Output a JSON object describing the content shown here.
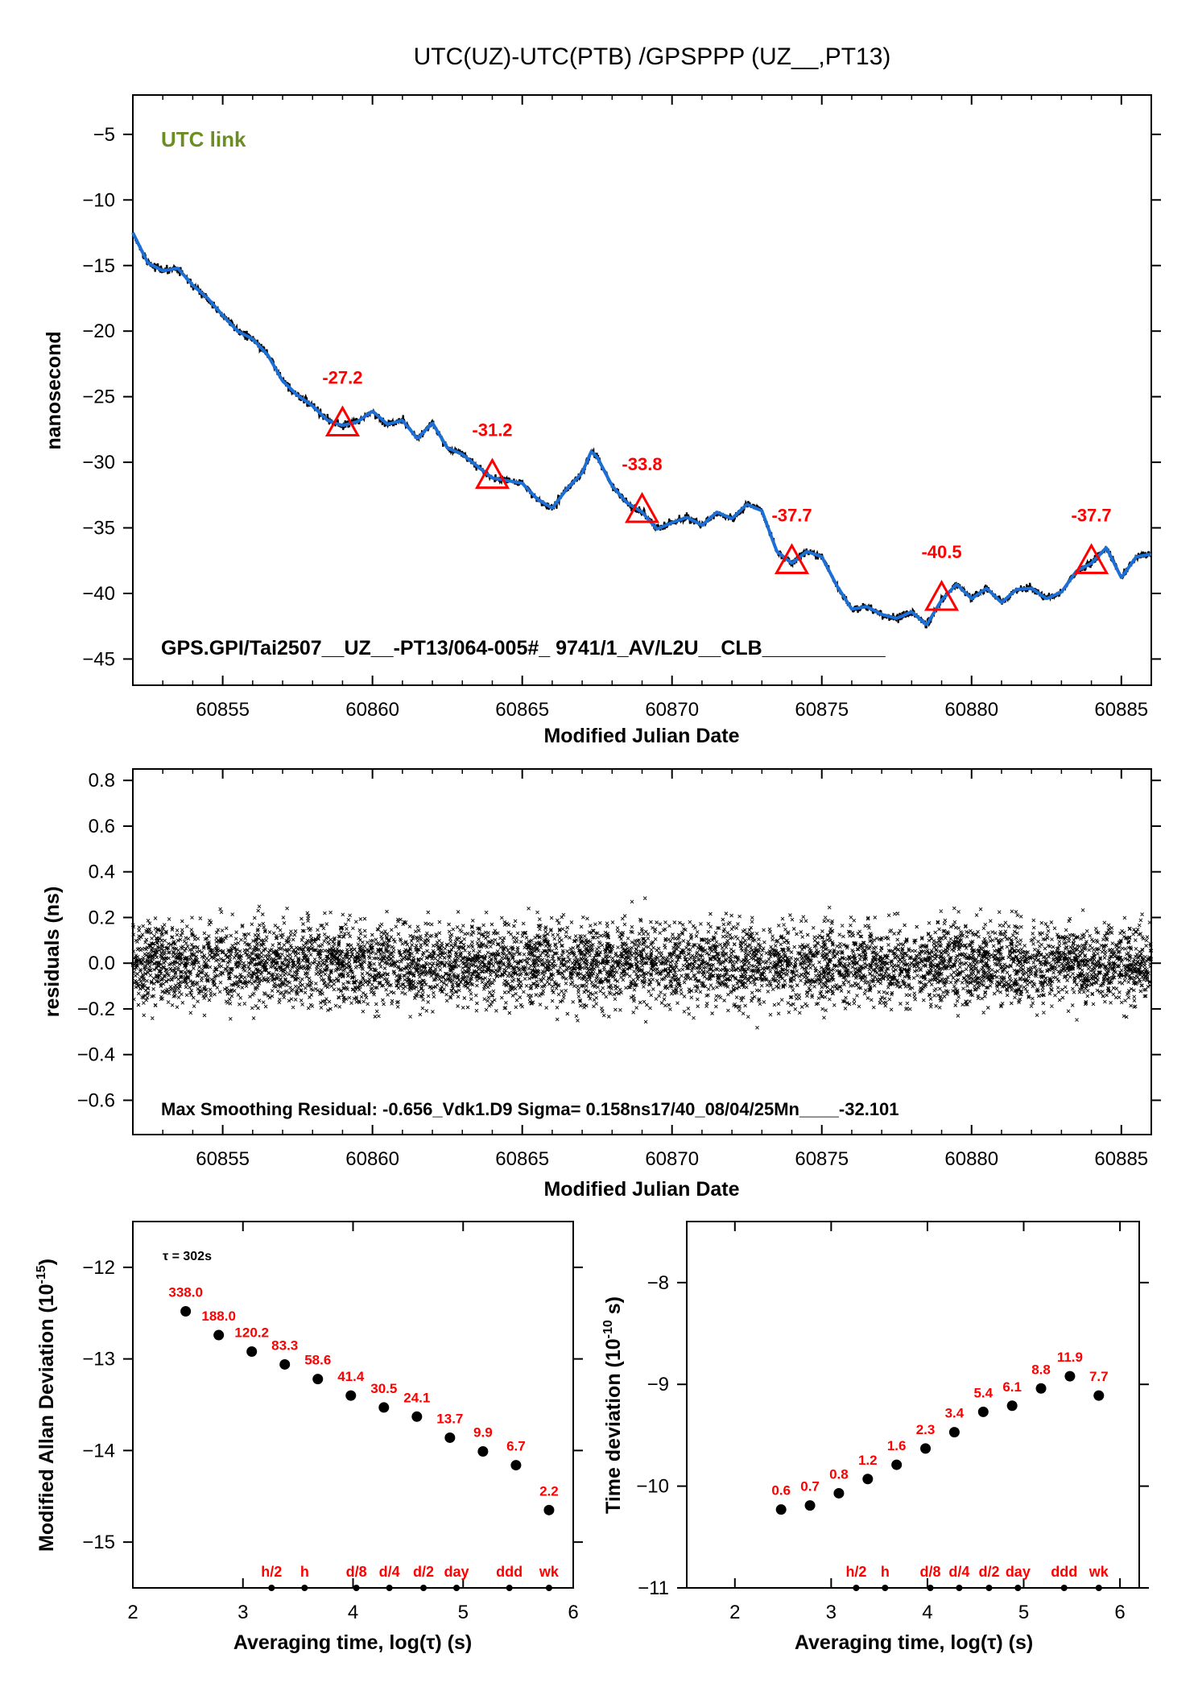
{
  "title": "UTC(UZ)-UTC(PTB)  /GPSPPP  (UZ__,PT13)",
  "panel1": {
    "tag": "UTC link",
    "ylabel": "nanosecond",
    "xlabel": "Modified Julian Date",
    "footer": "GPS.GPI/Tai2507__UZ__-PT13/064-005#_  9741/1_AV/L2U__CLB___________",
    "colors": {
      "trace": "#1b6fd6",
      "noise": "#000000",
      "markers": "#ff0000",
      "tag": "#6b8e23"
    }
  },
  "panel2": {
    "ylabel": "residuals (ns)",
    "xlabel": "Modified Julian Date",
    "footer": "Max Smoothing Residual: -0.656_Vdk1.D9  Sigma= 0.158ns17/40_08/04/25Mn____-32.101"
  },
  "panel3": {
    "ylabel_main": "Modified Allan Deviation (10",
    "ylabel_exp": "-15",
    "ylabel_close": ")",
    "xlabel": "Averaging time, log(τ) (s)",
    "tau_note": "τ = 302s"
  },
  "panel4": {
    "ylabel_main": "Time deviation (10",
    "ylabel_exp": "-10",
    "ylabel_close": " s)",
    "xlabel": "Averaging time, log(τ) (s)"
  },
  "chart_data": [
    {
      "type": "line",
      "title": "UTC(UZ)-UTC(PTB)  /GPSPPP  (UZ__,PT13)",
      "xlabel": "Modified Julian Date",
      "ylabel": "nanosecond",
      "xlim": [
        60852,
        60886
      ],
      "ylim": [
        -47,
        -2
      ],
      "xticks": [
        60855,
        60860,
        60865,
        60870,
        60875,
        60880,
        60885
      ],
      "yticks": [
        -5,
        -10,
        -15,
        -20,
        -25,
        -30,
        -35,
        -40,
        -45
      ],
      "series": [
        {
          "x": [
            60852.0,
            60852.5,
            60853.0,
            60853.5,
            60854.0,
            60854.5,
            60855.0,
            60855.5,
            60856.0,
            60856.5,
            60857.0,
            60857.5,
            60858.0,
            60858.5,
            60859.0,
            60859.5,
            60860.0,
            60860.5,
            60861.0,
            60861.5,
            60862.0,
            60862.5,
            60863.0,
            60863.5,
            60864.0,
            60864.5,
            60865.0,
            60865.5,
            60866.0,
            60866.5,
            60867.0,
            60867.3,
            60867.5,
            60868.0,
            60868.5,
            60869.0,
            60869.5,
            60870.0,
            60870.5,
            60871.0,
            60871.5,
            60872.0,
            60872.5,
            60873.0,
            60873.5,
            60874.0,
            60874.5,
            60875.0,
            60875.5,
            60876.0,
            60876.5,
            60877.0,
            60877.5,
            60878.0,
            60878.5,
            60879.0,
            60879.5,
            60880.0,
            60880.5,
            60881.0,
            60881.5,
            60882.0,
            60882.5,
            60883.0,
            60883.5,
            60884.0,
            60884.5,
            60885.0,
            60885.5,
            60886.0
          ],
          "y": [
            -12.5,
            -14.8,
            -15.4,
            -15.2,
            -16.5,
            -17.5,
            -18.8,
            -20.0,
            -20.6,
            -21.8,
            -23.8,
            -24.9,
            -25.7,
            -26.8,
            -27.2,
            -26.9,
            -26.1,
            -27.1,
            -26.8,
            -28.2,
            -27.0,
            -28.9,
            -29.4,
            -30.3,
            -31.2,
            -31.4,
            -31.6,
            -32.8,
            -33.5,
            -32.0,
            -30.8,
            -29.2,
            -29.6,
            -31.8,
            -33.1,
            -33.8,
            -35.1,
            -34.6,
            -34.2,
            -34.8,
            -33.8,
            -34.3,
            -33.2,
            -33.7,
            -36.8,
            -37.7,
            -36.8,
            -37.2,
            -39.4,
            -41.2,
            -41.0,
            -41.6,
            -41.9,
            -41.4,
            -42.4,
            -40.5,
            -39.3,
            -40.4,
            -39.6,
            -40.7,
            -39.7,
            -39.6,
            -40.4,
            -39.9,
            -38.3,
            -37.7,
            -36.5,
            -38.8,
            -37.2,
            -37.0
          ]
        }
      ],
      "markers": [
        {
          "x": 60859.0,
          "y": -27.2,
          "label": "-27.2"
        },
        {
          "x": 60864.0,
          "y": -31.2,
          "label": "-31.2"
        },
        {
          "x": 60869.0,
          "y": -33.8,
          "label": "-33.8"
        },
        {
          "x": 60874.0,
          "y": -37.7,
          "label": "-37.7"
        },
        {
          "x": 60879.0,
          "y": -40.5,
          "label": "-40.5"
        },
        {
          "x": 60884.0,
          "y": -37.7,
          "label": "-37.7"
        }
      ]
    },
    {
      "type": "scatter",
      "xlabel": "Modified Julian Date",
      "ylabel": "residuals (ns)",
      "xlim": [
        60852,
        60886
      ],
      "ylim": [
        -0.75,
        0.85
      ],
      "xticks": [
        60855,
        60860,
        60865,
        60870,
        60875,
        60880,
        60885
      ],
      "yticks": [
        0.8,
        0.6,
        0.4,
        0.2,
        0.0,
        -0.2,
        -0.4,
        -0.6
      ],
      "ytick_labels": [
        "0.8",
        "0.6",
        "0.4",
        "0.2",
        "0.0",
        "−0.2",
        "−0.4",
        "−0.6"
      ],
      "sigma": 0.158,
      "max_residual": -0.656
    },
    {
      "type": "scatter",
      "xlabel": "Averaging time, log(τ) (s)",
      "ylabel": "Modified Allan Deviation (10^-15)",
      "xlim": [
        2,
        6
      ],
      "ylim": [
        -15.5,
        -11.5
      ],
      "xticks": [
        2,
        3,
        4,
        5,
        6
      ],
      "yticks": [
        -12,
        -13,
        -14,
        -15
      ],
      "x": [
        2.48,
        2.78,
        3.08,
        3.38,
        3.68,
        3.98,
        4.28,
        4.58,
        4.88,
        5.18,
        5.48,
        5.78
      ],
      "y": [
        -12.48,
        -12.74,
        -12.92,
        -13.06,
        -13.22,
        -13.4,
        -13.53,
        -13.63,
        -13.86,
        -14.01,
        -14.16,
        -14.65
      ],
      "labels": [
        "338.0",
        "188.0",
        "120.2",
        "83.3",
        "58.6",
        "41.4",
        "30.5",
        "24.1",
        "13.7",
        "9.9",
        "6.7",
        "2.2"
      ],
      "time_markers": [
        {
          "x": 3.26,
          "label": "h/2"
        },
        {
          "x": 3.56,
          "label": "h"
        },
        {
          "x": 4.03,
          "label": "d/8"
        },
        {
          "x": 4.33,
          "label": "d/4"
        },
        {
          "x": 4.64,
          "label": "d/2"
        },
        {
          "x": 4.94,
          "label": "day"
        },
        {
          "x": 5.42,
          "label": "ddd"
        },
        {
          "x": 5.78,
          "label": "wk"
        }
      ]
    },
    {
      "type": "scatter",
      "xlabel": "Averaging time, log(τ) (s)",
      "ylabel": "Time deviation (10^-10 s)",
      "xlim": [
        1.5,
        6.2
      ],
      "ylim": [
        -11,
        -7.4
      ],
      "xticks": [
        2,
        3,
        4,
        5,
        6
      ],
      "yticks": [
        -8,
        -9,
        -10,
        -11
      ],
      "x": [
        2.48,
        2.78,
        3.08,
        3.38,
        3.68,
        3.98,
        4.28,
        4.58,
        4.88,
        5.18,
        5.48,
        5.78
      ],
      "y": [
        -10.23,
        -10.19,
        -10.07,
        -9.93,
        -9.79,
        -9.63,
        -9.47,
        -9.27,
        -9.21,
        -9.04,
        -8.92,
        -9.11
      ],
      "labels": [
        "0.6",
        "0.7",
        "0.8",
        "1.2",
        "1.6",
        "2.3",
        "3.4",
        "5.4",
        "6.1",
        "8.8",
        "11.9",
        "7.7"
      ],
      "time_markers": [
        {
          "x": 3.26,
          "label": "h/2"
        },
        {
          "x": 3.56,
          "label": "h"
        },
        {
          "x": 4.03,
          "label": "d/8"
        },
        {
          "x": 4.33,
          "label": "d/4"
        },
        {
          "x": 4.64,
          "label": "d/2"
        },
        {
          "x": 4.94,
          "label": "day"
        },
        {
          "x": 5.42,
          "label": "ddd"
        },
        {
          "x": 5.78,
          "label": "wk"
        }
      ]
    }
  ]
}
